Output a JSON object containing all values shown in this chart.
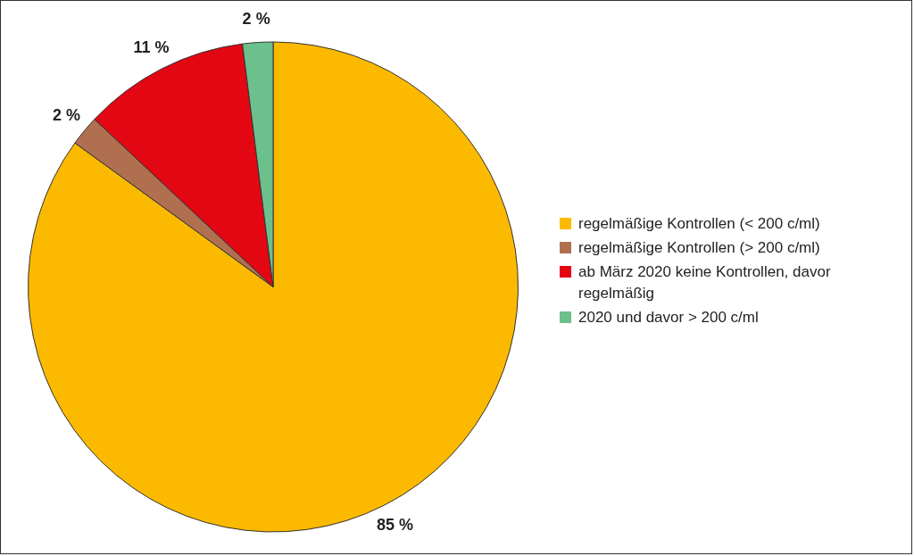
{
  "chart_data": {
    "type": "pie",
    "categories": [
      "regelmäßige Kontrollen (< 200 c/ml)",
      "regelmäßige Kontrollen (> 200 c/ml)",
      "ab März 2020 keine Kontrollen, davor regelmäßig",
      "2020 und davor > 200 c/ml"
    ],
    "values": [
      85,
      2,
      11,
      2
    ],
    "colors": [
      "#fbb900",
      "#b07050",
      "#e30613",
      "#6cc08c"
    ],
    "value_labels": [
      "85 %",
      "2 %",
      "11 %",
      "2 %"
    ],
    "legend": "right"
  }
}
